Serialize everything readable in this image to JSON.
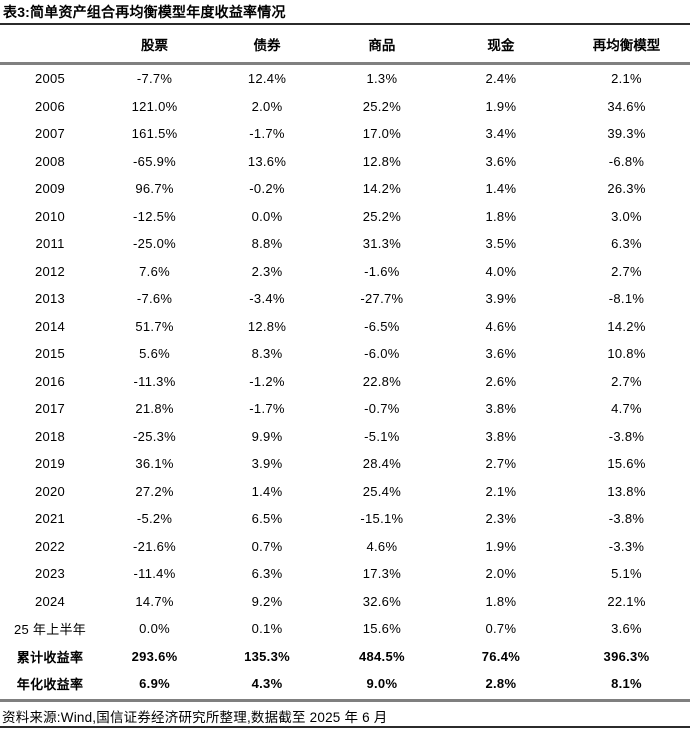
{
  "title": "表3:简单资产组合再均衡模型年度收益率情况",
  "source": "资料来源:Wind,国信证券经济研究所整理,数据截至 2025 年 6 月",
  "colors": {
    "text": "#000000",
    "divider_dark": "#2b2b2b",
    "divider_gray": "#808080"
  },
  "table": {
    "columns": [
      "",
      "股票",
      "债券",
      "商品",
      "现金",
      "再均衡模型"
    ],
    "rows": [
      {
        "label": "2005",
        "values": [
          "-7.7%",
          "12.4%",
          "1.3%",
          "2.4%",
          "2.1%"
        ],
        "bold": false
      },
      {
        "label": "2006",
        "values": [
          "121.0%",
          "2.0%",
          "25.2%",
          "1.9%",
          "34.6%"
        ],
        "bold": false
      },
      {
        "label": "2007",
        "values": [
          "161.5%",
          "-1.7%",
          "17.0%",
          "3.4%",
          "39.3%"
        ],
        "bold": false
      },
      {
        "label": "2008",
        "values": [
          "-65.9%",
          "13.6%",
          "12.8%",
          "3.6%",
          "-6.8%"
        ],
        "bold": false
      },
      {
        "label": "2009",
        "values": [
          "96.7%",
          "-0.2%",
          "14.2%",
          "1.4%",
          "26.3%"
        ],
        "bold": false
      },
      {
        "label": "2010",
        "values": [
          "-12.5%",
          "0.0%",
          "25.2%",
          "1.8%",
          "3.0%"
        ],
        "bold": false
      },
      {
        "label": "2011",
        "values": [
          "-25.0%",
          "8.8%",
          "31.3%",
          "3.5%",
          "6.3%"
        ],
        "bold": false
      },
      {
        "label": "2012",
        "values": [
          "7.6%",
          "2.3%",
          "-1.6%",
          "4.0%",
          "2.7%"
        ],
        "bold": false
      },
      {
        "label": "2013",
        "values": [
          "-7.6%",
          "-3.4%",
          "-27.7%",
          "3.9%",
          "-8.1%"
        ],
        "bold": false
      },
      {
        "label": "2014",
        "values": [
          "51.7%",
          "12.8%",
          "-6.5%",
          "4.6%",
          "14.2%"
        ],
        "bold": false
      },
      {
        "label": "2015",
        "values": [
          "5.6%",
          "8.3%",
          "-6.0%",
          "3.6%",
          "10.8%"
        ],
        "bold": false
      },
      {
        "label": "2016",
        "values": [
          "-11.3%",
          "-1.2%",
          "22.8%",
          "2.6%",
          "2.7%"
        ],
        "bold": false
      },
      {
        "label": "2017",
        "values": [
          "21.8%",
          "-1.7%",
          "-0.7%",
          "3.8%",
          "4.7%"
        ],
        "bold": false
      },
      {
        "label": "2018",
        "values": [
          "-25.3%",
          "9.9%",
          "-5.1%",
          "3.8%",
          "-3.8%"
        ],
        "bold": false
      },
      {
        "label": "2019",
        "values": [
          "36.1%",
          "3.9%",
          "28.4%",
          "2.7%",
          "15.6%"
        ],
        "bold": false
      },
      {
        "label": "2020",
        "values": [
          "27.2%",
          "1.4%",
          "25.4%",
          "2.1%",
          "13.8%"
        ],
        "bold": false
      },
      {
        "label": "2021",
        "values": [
          "-5.2%",
          "6.5%",
          "-15.1%",
          "2.3%",
          "-3.8%"
        ],
        "bold": false
      },
      {
        "label": "2022",
        "values": [
          "-21.6%",
          "0.7%",
          "4.6%",
          "1.9%",
          "-3.3%"
        ],
        "bold": false
      },
      {
        "label": "2023",
        "values": [
          "-11.4%",
          "6.3%",
          "17.3%",
          "2.0%",
          "5.1%"
        ],
        "bold": false
      },
      {
        "label": "2024",
        "values": [
          "14.7%",
          "9.2%",
          "32.6%",
          "1.8%",
          "22.1%"
        ],
        "bold": false
      },
      {
        "label": "25 年上半年",
        "values": [
          "0.0%",
          "0.1%",
          "15.6%",
          "0.7%",
          "3.6%"
        ],
        "bold": false
      },
      {
        "label": "累计收益率",
        "values": [
          "293.6%",
          "135.3%",
          "484.5%",
          "76.4%",
          "396.3%"
        ],
        "bold": true
      },
      {
        "label": "年化收益率",
        "values": [
          "6.9%",
          "4.3%",
          "9.0%",
          "2.8%",
          "8.1%"
        ],
        "bold": true
      }
    ]
  }
}
